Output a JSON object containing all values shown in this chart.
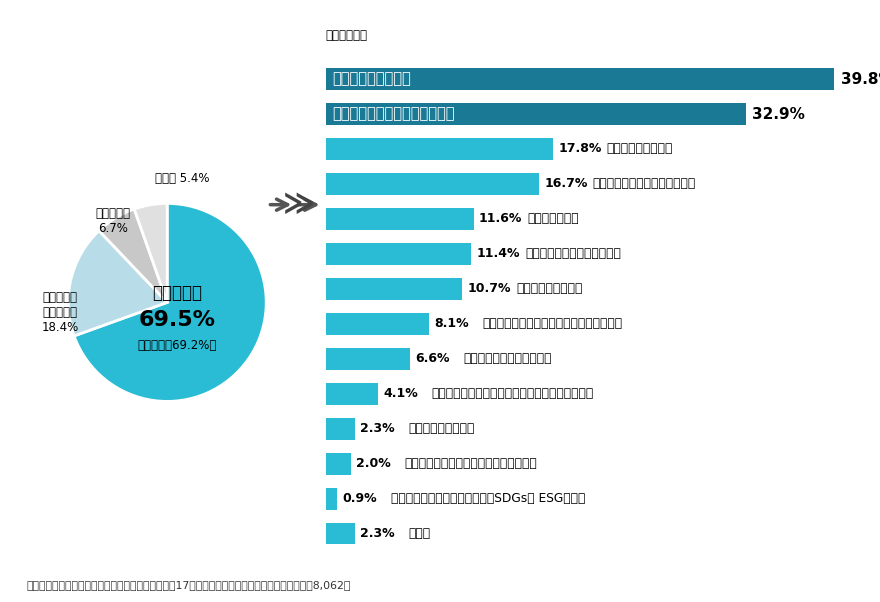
{
  "pie_values": [
    69.5,
    18.4,
    6.7,
    5.4
  ],
  "pie_colors": [
    "#29bcd4",
    "#b8dde8",
    "#c8c8c8",
    "#e0e0e0"
  ],
  "pie_center_text1": "効果を実感",
  "pie_center_text2": "69.5%",
  "pie_sub_text": "（前回調査69.2%）",
  "bar_values": [
    39.8,
    32.9,
    17.8,
    16.7,
    11.6,
    11.4,
    10.7,
    8.1,
    6.6,
    4.1,
    2.3,
    2.0,
    0.9,
    2.3
  ],
  "bar_labels": [
    "企業イメージの向上",
    "従業員のモチベーションの向上",
    "経営方针等の明確化",
    "採用活動におけるプラスの効果",
    "売り上げの増加",
    "取引の拡大（新規開拓含む）",
    "競合他社との差別化",
    "新規事業立ち上げ、新商品・サービス開発",
    "補助金や助成金の採択増加",
    "金融機関からの融資の際の優遇や債券の発行支援",
    "表彰等のノミネート",
    "国や行政の入札や企画提案時などの優遇",
    "投資家や個人からの資金調達（SDGs・ ESG投資）",
    "その他"
  ],
  "bar_color_top2": "#1a7a96",
  "bar_color_rest": "#29bcd4",
  "note_text": "注：母数は「現在、力を入れている項目」のうち、17の目標（項目）のいずれかを選択した企業8,062社",
  "fukusu_text": "（複数回答）",
  "background_color": "#ffffff",
  "bar_max_pct": 42
}
